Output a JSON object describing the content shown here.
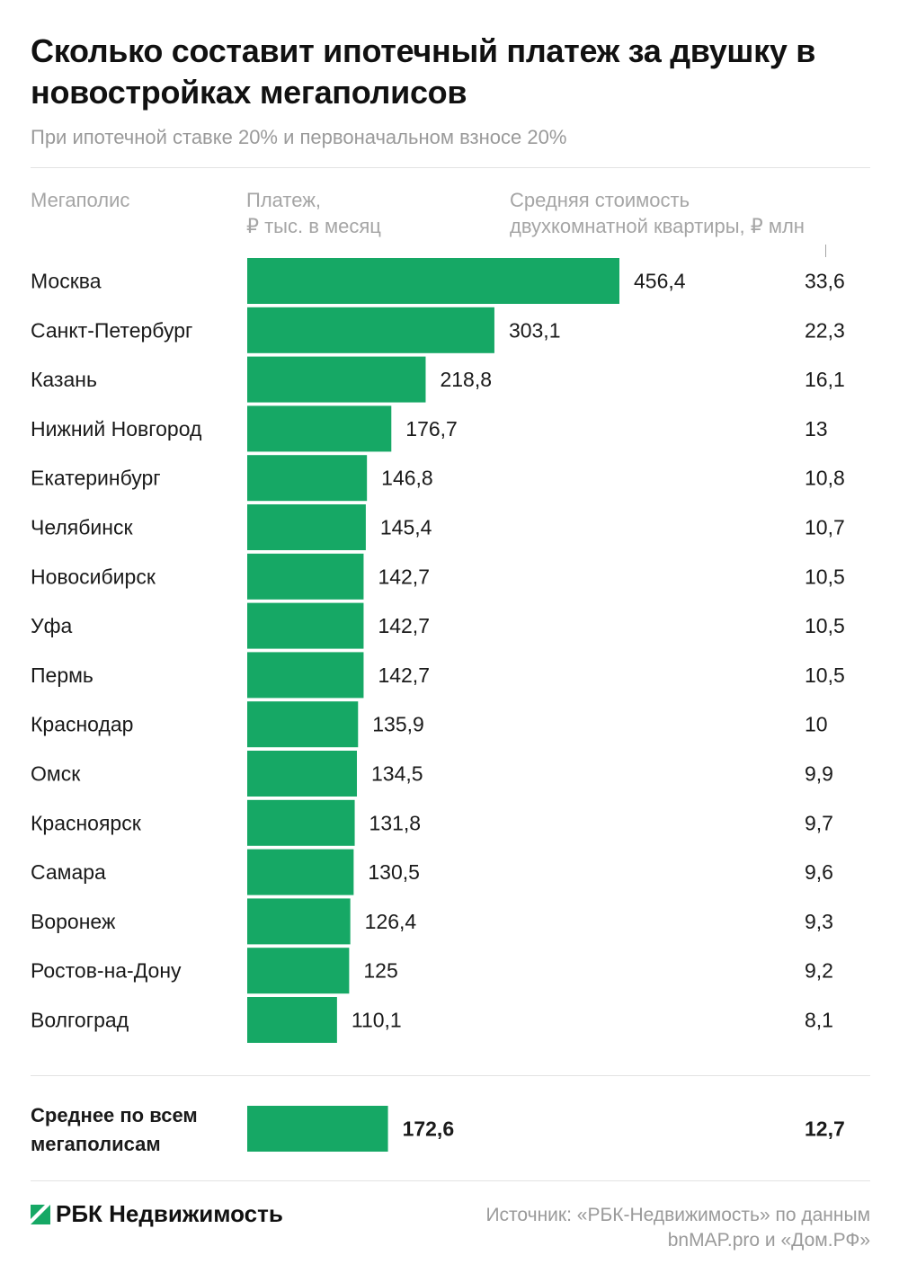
{
  "header": {
    "title": "Сколько составит ипотечный платеж за двушку в новостройках мегаполисов",
    "subtitle": "При ипотечной ставке 20% и первоначальном взносе 20%"
  },
  "columns": {
    "city": "Мегаполис",
    "payment": "Платеж,\n₽ тыс. в месяц",
    "price": "Средняя стоимость\nдвухкомнатной квартиры, ₽ млн"
  },
  "colors": {
    "bar": "#16a865"
  },
  "chart_data": {
    "type": "bar",
    "orientation": "horizontal",
    "categories": [
      "Москва",
      "Санкт-Петербург",
      "Казань",
      "Нижний Новгород",
      "Екатеринбург",
      "Челябинск",
      "Новосибирск",
      "Уфа",
      "Пермь",
      "Краснодар",
      "Омск",
      "Красноярск",
      "Самара",
      "Воронеж",
      "Ростов-на-Дону",
      "Волгоград"
    ],
    "series": [
      {
        "values": [
          456.4,
          303.1,
          218.8,
          176.7,
          146.8,
          145.4,
          142.7,
          142.7,
          142.7,
          135.9,
          134.5,
          131.8,
          130.5,
          126.4,
          125,
          110.1
        ]
      }
    ],
    "value_labels": [
      "456,4",
      "303,1",
      "218,8",
      "176,7",
      "146,8",
      "145,4",
      "142,7",
      "142,7",
      "142,7",
      "135,9",
      "134,5",
      "131,8",
      "130,5",
      "126,4",
      "125",
      "110,1"
    ],
    "secondary_values": [
      "33,6",
      "22,3",
      "16,1",
      "13",
      "10,8",
      "10,7",
      "10,5",
      "10,5",
      "10,5",
      "10",
      "9,9",
      "9,7",
      "9,6",
      "9,3",
      "9,2",
      "8,1"
    ],
    "average": {
      "label": "Среднее по всем\nмегаполисам",
      "value": 172.6,
      "value_label": "172,6",
      "secondary_value": "12,7"
    },
    "xlim": [
      0,
      456.4
    ]
  },
  "footer": {
    "brand": "РБК Недвижимость",
    "source": "Источник: «РБК-Недвижимость» по данным bnMAP.pro и «Дом.РФ»"
  }
}
